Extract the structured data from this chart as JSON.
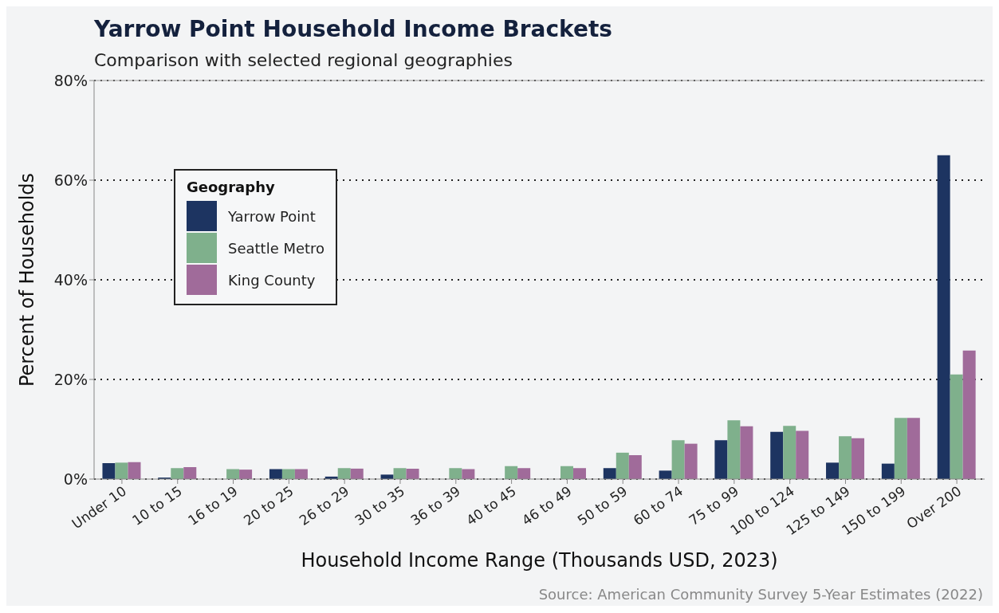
{
  "chart_data": {
    "type": "bar",
    "title": "Yarrow Point Household Income Brackets",
    "subtitle": "Comparison with selected regional geographies",
    "xlabel": "Household Income Range (Thousands USD, 2023)",
    "ylabel": "Percent of Households",
    "legend_title": "Geography",
    "categories": [
      "Under 10",
      "10 to 15",
      "16 to 19",
      "20 to 25",
      "26 to 29",
      "30 to 35",
      "36 to 39",
      "40 to 45",
      "46 to 49",
      "50 to 59",
      "60 to 74",
      "75 to 99",
      "100 to 124",
      "125 to 149",
      "150 to 199",
      "Over 200"
    ],
    "series": [
      {
        "name": "Yarrow Point",
        "color": "#1d3461",
        "values": [
          3.2,
          0.3,
          0,
          2.0,
          0.5,
          0.9,
          0,
          0,
          0,
          2.2,
          1.7,
          7.8,
          9.5,
          3.3,
          3.1,
          65
        ]
      },
      {
        "name": "Seattle Metro",
        "color": "#7fb08c",
        "values": [
          3.3,
          2.2,
          2.0,
          2.0,
          2.2,
          2.2,
          2.2,
          2.6,
          2.6,
          5.3,
          7.8,
          11.8,
          10.7,
          8.6,
          12.3,
          21
        ]
      },
      {
        "name": "King County",
        "color": "#a06b9a",
        "values": [
          3.4,
          2.4,
          1.9,
          2.0,
          2.1,
          2.1,
          2.0,
          2.2,
          2.2,
          4.8,
          7.1,
          10.6,
          9.7,
          8.2,
          12.3,
          25.8
        ]
      }
    ],
    "ylim": [
      0,
      80
    ],
    "yticks": [
      {
        "value": 0,
        "label": "0%"
      },
      {
        "value": 20,
        "label": "20%"
      },
      {
        "value": 40,
        "label": "40%"
      },
      {
        "value": 60,
        "label": "60%"
      },
      {
        "value": 80,
        "label": "80%"
      }
    ],
    "grid": "y",
    "legend": "top left",
    "annotations": [
      "Source: American Community Survey 5-Year Estimates (2022)"
    ]
  }
}
